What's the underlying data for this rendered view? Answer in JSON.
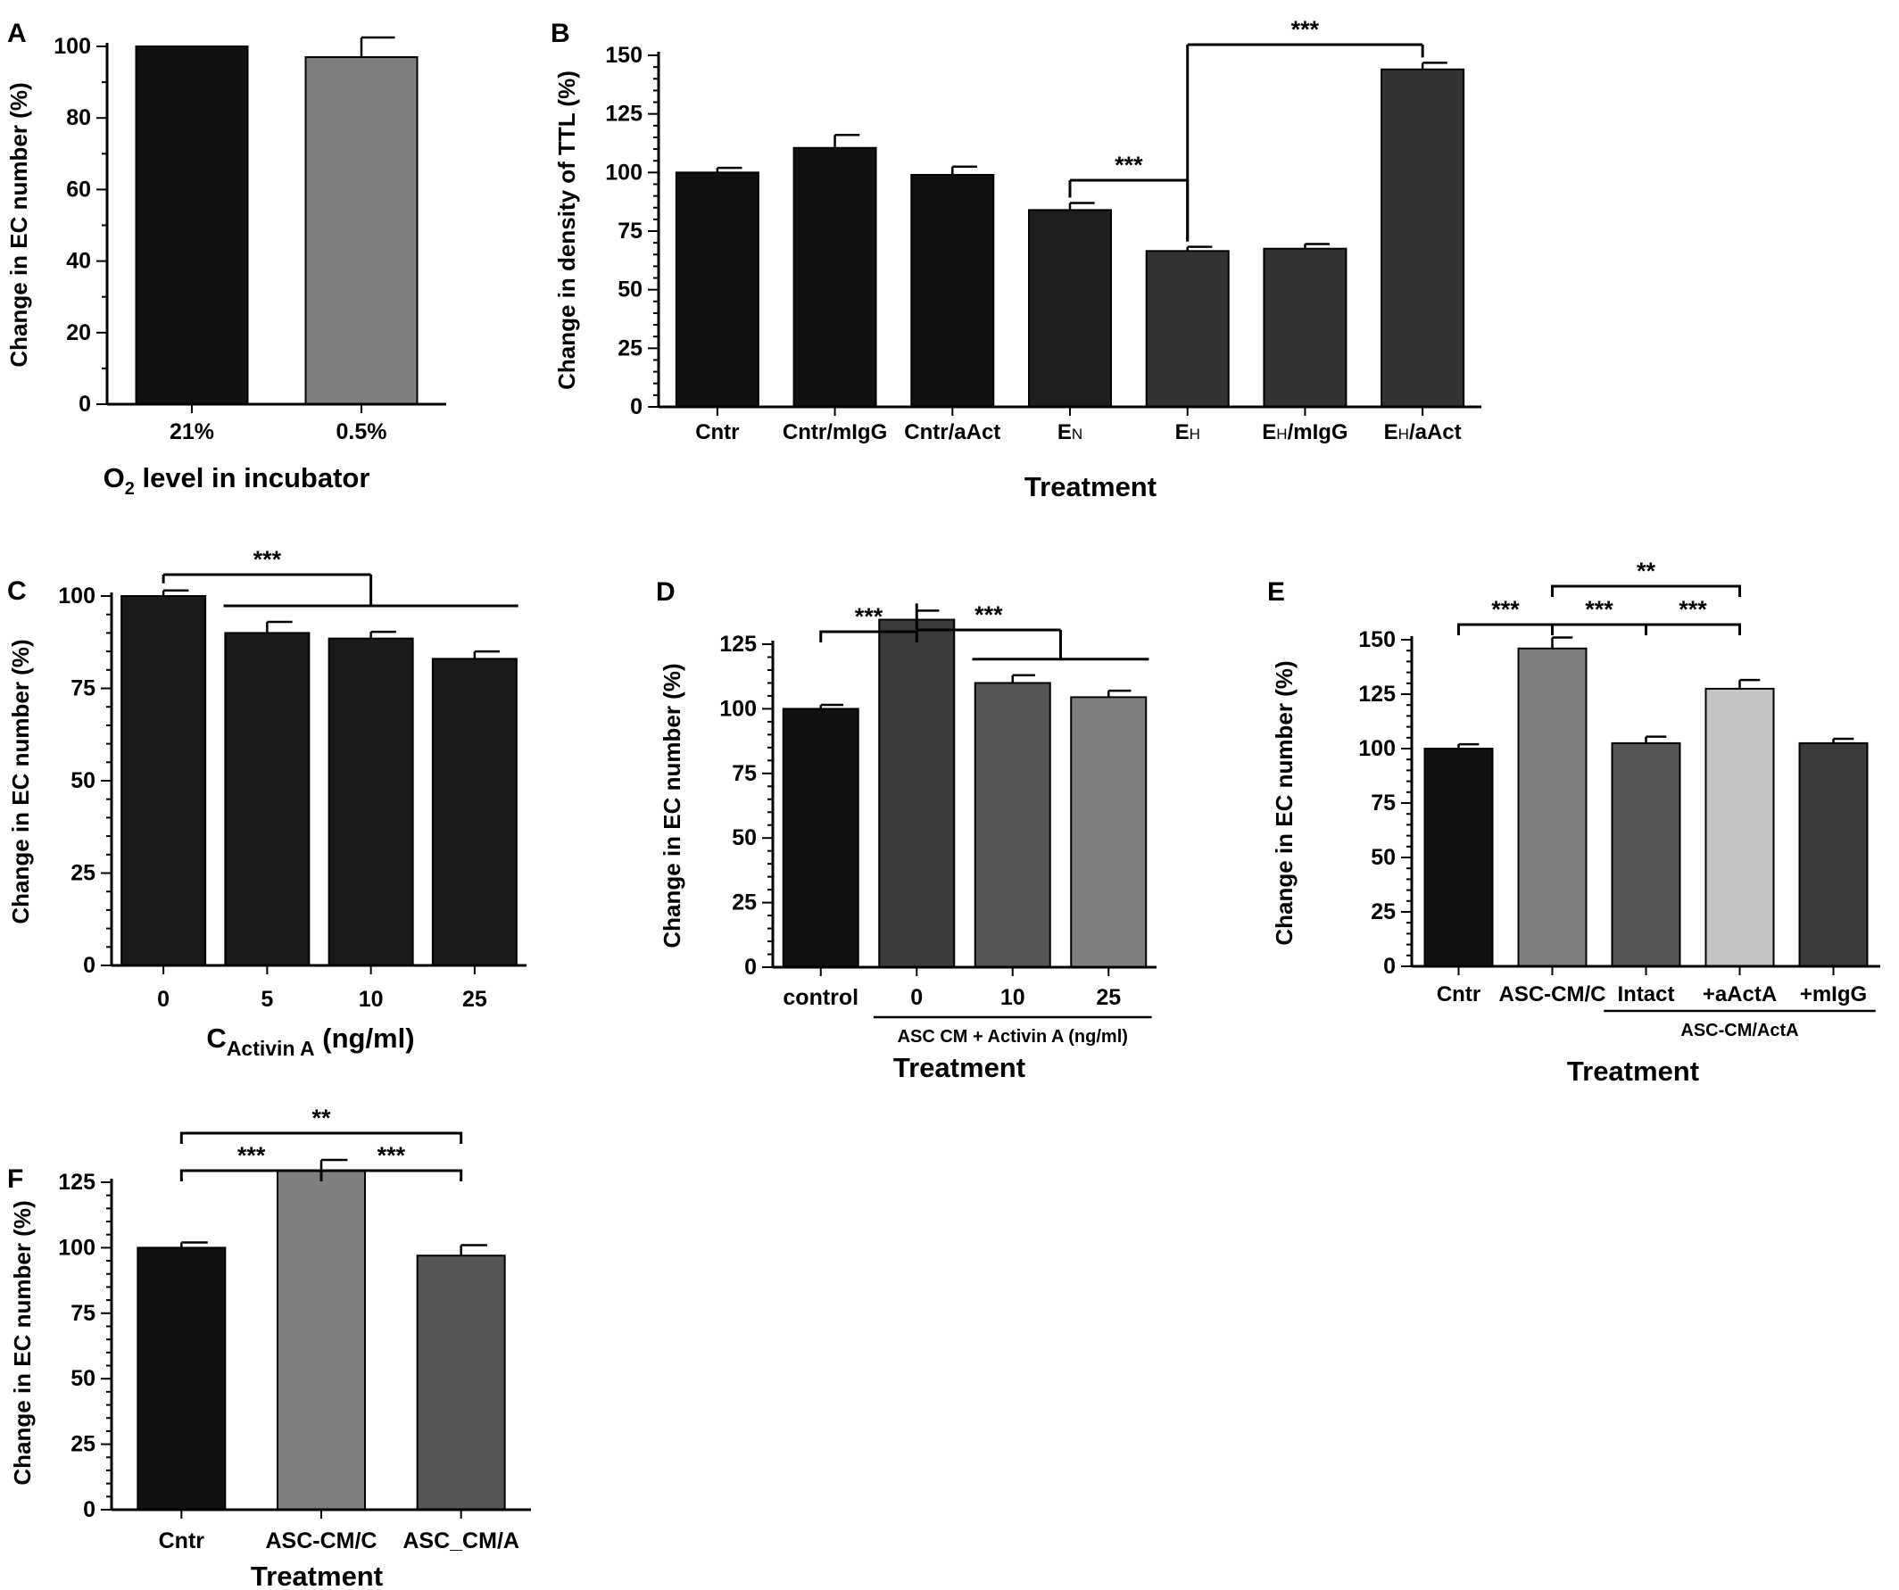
{
  "chart_data": [
    {
      "id": "A",
      "panel_label": "A",
      "type": "bar",
      "ylabel": "Change in EC number (%)",
      "xlabel": "O₂ level in incubator",
      "ylim": [
        0,
        100
      ],
      "yticks": [
        0,
        20,
        40,
        60,
        80,
        100
      ],
      "categories": [
        "21%",
        "0.5%"
      ],
      "values": [
        100,
        97
      ],
      "errors": [
        0,
        5.5
      ],
      "colors": [
        "#111111",
        "#7f7f7f"
      ],
      "significance": []
    },
    {
      "id": "B",
      "panel_label": "B",
      "type": "bar",
      "ylabel": "Change in density of TTL (%)",
      "xlabel": "Treatment",
      "ylim": [
        0,
        150
      ],
      "yticks": [
        0,
        25,
        50,
        75,
        100,
        125,
        150
      ],
      "categories": [
        "Cntr",
        "Cntr/mIgG",
        "Cntr/aAct",
        "EN",
        "EH",
        "EH/mIgG",
        "EH/aAct"
      ],
      "values": [
        100,
        110.5,
        99,
        84,
        66.5,
        67.5,
        144
      ],
      "errors": [
        2,
        5.5,
        3.5,
        3,
        1.8,
        2,
        2.8
      ],
      "colors": [
        "#111111",
        "#111111",
        "#111111",
        "#1e1e1e",
        "#333333",
        "#333333",
        "#333333"
      ],
      "significance": [
        {
          "label": "***",
          "from": 3,
          "to": 4
        },
        {
          "label": "***",
          "from": 4,
          "to": 6
        }
      ]
    },
    {
      "id": "C",
      "panel_label": "C",
      "type": "bar",
      "ylabel": "Change in EC number (%)",
      "xlabel": "CActivin A (ng/ml)",
      "ylim": [
        0,
        100
      ],
      "yticks": [
        0,
        25,
        50,
        75,
        100
      ],
      "categories": [
        "0",
        "5",
        "10",
        "25"
      ],
      "values": [
        100,
        90,
        88.5,
        83
      ],
      "errors": [
        1.5,
        3,
        1.8,
        2
      ],
      "colors": [
        "#1a1a1a",
        "#1a1a1a",
        "#1a1a1a",
        "#1a1a1a"
      ],
      "significance": [
        {
          "label": "***",
          "from": 0,
          "to_group": [
            1,
            3
          ]
        }
      ]
    },
    {
      "id": "D",
      "panel_label": "D",
      "type": "bar",
      "ylabel": "Change in EC number (%)",
      "xlabel": "Treatment",
      "ylim": [
        0,
        125
      ],
      "yticks": [
        0,
        25,
        50,
        75,
        100,
        125
      ],
      "categories": [
        "control",
        "0",
        "10",
        "25"
      ],
      "group_label": "ASC CM + Activin A (ng/ml)",
      "values": [
        100,
        134.5,
        110,
        104.5
      ],
      "errors": [
        1.5,
        3.5,
        3,
        2.5
      ],
      "colors": [
        "#111111",
        "#3b3b3b",
        "#555555",
        "#7f7f7f"
      ],
      "significance": [
        {
          "label": "***",
          "from": 0,
          "to": 1
        },
        {
          "label": "***",
          "from": 1,
          "to_group": [
            2,
            3
          ]
        }
      ]
    },
    {
      "id": "E",
      "panel_label": "E",
      "type": "bar",
      "ylabel": "Change in EC number (%)",
      "xlabel": "Treatment",
      "ylim": [
        0,
        150
      ],
      "yticks": [
        0,
        25,
        50,
        75,
        100,
        125,
        150
      ],
      "categories": [
        "Cntr",
        "ASC-CM/C",
        "Intact",
        "+aActA",
        "+mIgG"
      ],
      "group_label": "ASC-CM/ActA",
      "values": [
        100,
        146,
        102.5,
        127.5,
        102.5
      ],
      "errors": [
        2,
        5,
        3,
        4,
        2
      ],
      "colors": [
        "#111111",
        "#7f7f7f",
        "#555555",
        "#c4c4c4",
        "#3b3b3b"
      ],
      "significance": [
        {
          "label": "***",
          "from": 0,
          "to": 1
        },
        {
          "label": "***",
          "from": 1,
          "to": 2
        },
        {
          "label": "***",
          "from": 2,
          "to": 3
        },
        {
          "label": "**",
          "from": 1,
          "to": 3
        }
      ]
    },
    {
      "id": "F",
      "panel_label": "F",
      "type": "bar",
      "ylabel": "Change in EC number (%)",
      "xlabel": "Treatment",
      "ylim": [
        0,
        125
      ],
      "yticks": [
        0,
        25,
        50,
        75,
        100,
        125
      ],
      "categories": [
        "Cntr",
        "ASC-CM/C",
        "ASC_CM/A"
      ],
      "values": [
        100,
        129.5,
        97
      ],
      "errors": [
        2,
        4,
        4
      ],
      "colors": [
        "#111111",
        "#7f7f7f",
        "#555555"
      ],
      "significance": [
        {
          "label": "***",
          "from": 0,
          "to": 1
        },
        {
          "label": "***",
          "from": 1,
          "to": 2
        },
        {
          "label": "**",
          "from": 0,
          "to": 2
        }
      ]
    }
  ]
}
